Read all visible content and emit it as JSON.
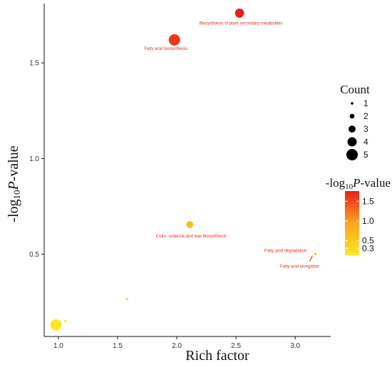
{
  "chart_data": {
    "type": "scatter",
    "xlabel": "Rich factor",
    "ylabel": {
      "prefix": "-log",
      "sub": "10",
      "italic": "P",
      "suffix": "-value"
    },
    "xlim": [
      0.88,
      3.3
    ],
    "ylim": [
      0.07,
      1.81
    ],
    "x_ticks": [
      1.0,
      1.5,
      2.0,
      2.5,
      3.0
    ],
    "x_tick_labels": [
      "1.0",
      "1.5",
      "2.0",
      "2.5",
      "3.0"
    ],
    "y_ticks": [
      0.5,
      1.0,
      1.5
    ],
    "y_tick_labels": [
      "0.5",
      "1.0",
      "1.5"
    ],
    "grid": false,
    "color_low": "#fde725",
    "color_high": "#e8211c",
    "points": [
      {
        "x": 2.53,
        "y": 1.76,
        "count": 4,
        "label": "Biosynthesis of plant secondary metabolites"
      },
      {
        "x": 1.98,
        "y": 1.62,
        "count": 5,
        "label": "Fatty acid biosynthesis"
      },
      {
        "x": 2.11,
        "y": 0.655,
        "count": 3,
        "label": "Cutin, suberine and wax biosynthesis"
      },
      {
        "x": 3.17,
        "y": 0.5,
        "count": 1,
        "label": "Fatty acid degradation"
      },
      {
        "x": 3.17,
        "y": 0.5,
        "count": 1,
        "label": "Fatty acid elongation"
      },
      {
        "x": 1.58,
        "y": 0.265,
        "count": 1,
        "label": ""
      },
      {
        "x": 1.06,
        "y": 0.15,
        "count": 1,
        "label": ""
      },
      {
        "x": 0.98,
        "y": 0.13,
        "count": 5,
        "label": ""
      }
    ],
    "size_legend": {
      "title": "Count",
      "values": [
        1,
        2,
        3,
        4,
        5
      ],
      "labels": [
        "1",
        "2",
        "3",
        "4",
        "5"
      ]
    },
    "color_legend": {
      "title": {
        "prefix": "-log",
        "sub": "10",
        "italic": "P",
        "suffix": "-value"
      },
      "range": [
        0.13,
        1.76
      ],
      "ticks": [
        0.5,
        1.0,
        1.5
      ],
      "tick_labels": [
        "0.5",
        "1.0",
        "1.5"
      ],
      "extra_ticks": [
        0.3
      ],
      "extra_tick_labels": [
        "0.3"
      ]
    }
  }
}
